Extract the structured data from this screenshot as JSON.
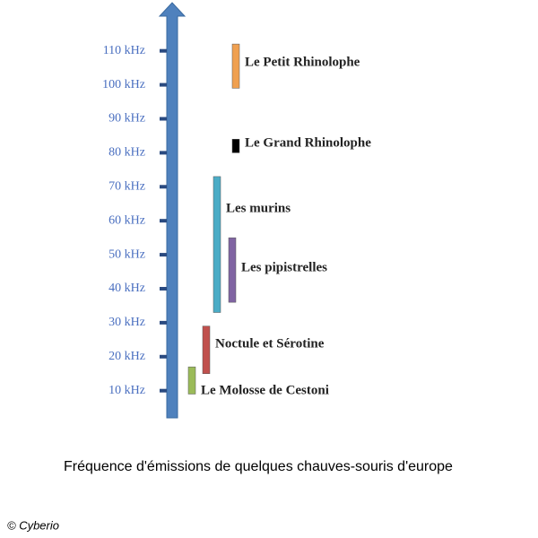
{
  "chart_data": {
    "type": "range",
    "title": "Fréquence d'émissions de quelques chauves-souris d'europe",
    "credit": "© Cyberio",
    "categories": [
      "Le Petit Rhinolophe",
      "Le Grand Rhinolophe",
      "Les murins",
      "Les pipistrelles",
      "Noctule et Sérotine",
      "Le Molosse de Cestoni"
    ],
    "low": [
      99,
      80,
      33,
      36,
      15,
      9
    ],
    "high": [
      112,
      84,
      73,
      55,
      29,
      17
    ],
    "colors": [
      "#f0a050",
      "#000000",
      "#4bacc6",
      "#8064a2",
      "#c0504d",
      "#9bbb59"
    ],
    "ylim": [
      2,
      121
    ],
    "yticks": [
      {
        "value": 10,
        "label": "10 kHz"
      },
      {
        "value": 20,
        "label": "20 kHz"
      },
      {
        "value": 30,
        "label": "30 kHz"
      },
      {
        "value": 40,
        "label": "40 kHz"
      },
      {
        "value": 50,
        "label": "50 kHz"
      },
      {
        "value": 60,
        "label": "60 kHz"
      },
      {
        "value": 70,
        "label": "70 kHz"
      },
      {
        "value": 80,
        "label": "80 kHz"
      },
      {
        "value": 90,
        "label": "90 kHz"
      },
      {
        "value": 100,
        "label": "100 kHz"
      },
      {
        "value": 110,
        "label": "110 kHz"
      }
    ]
  }
}
